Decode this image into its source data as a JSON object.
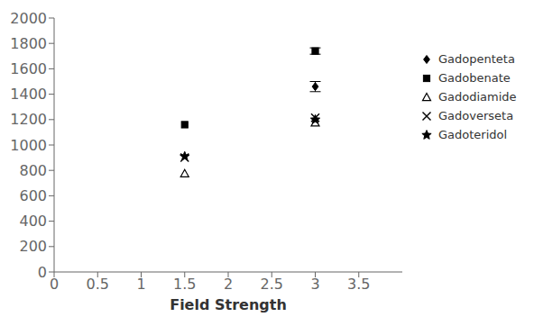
{
  "chart_data": {
    "type": "scatter",
    "xlabel": "Field Strength",
    "xlim": [
      0,
      4.0
    ],
    "ylim": [
      0,
      2000
    ],
    "xticks": [
      0,
      0.5,
      1,
      1.5,
      2,
      2.5,
      3,
      3.5
    ],
    "yticks": [
      0,
      200,
      400,
      600,
      800,
      1000,
      1200,
      1400,
      1600,
      1800,
      2000
    ],
    "color": "#000000",
    "legend": "right",
    "series": [
      {
        "name": "Gadopenteta",
        "marker": "diamond",
        "x": [
          3.0
        ],
        "values": [
          1460
        ],
        "yerr": [
          40
        ]
      },
      {
        "name": "Gadobenate",
        "marker": "square",
        "x": [
          1.5,
          3.0
        ],
        "values": [
          1160,
          1740
        ],
        "yerr": [
          null,
          25
        ]
      },
      {
        "name": "Gadodiamide",
        "marker": "triangle-open",
        "x": [
          1.5,
          3.0
        ],
        "values": [
          775,
          1175
        ],
        "yerr": [
          null,
          null
        ]
      },
      {
        "name": "Gadoverseta",
        "marker": "x",
        "x": [
          1.5,
          3.0
        ],
        "values": [
          900,
          1215
        ],
        "yerr": [
          null,
          null
        ]
      },
      {
        "name": "Gadoteridol",
        "marker": "star",
        "x": [
          1.5,
          3.0
        ],
        "values": [
          910,
          1200
        ],
        "yerr": [
          null,
          null
        ]
      }
    ]
  }
}
